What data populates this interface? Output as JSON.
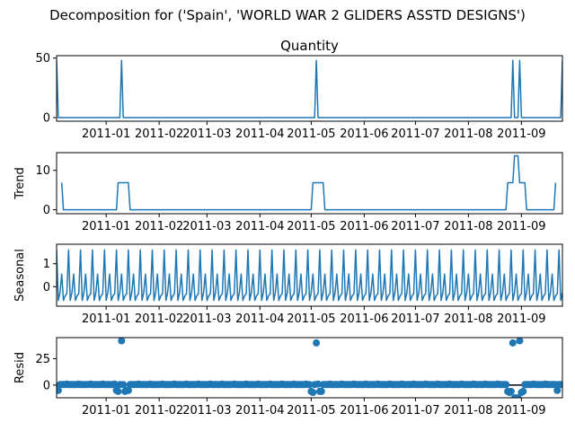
{
  "figure": {
    "suptitle": "Decomposition for ('Spain', 'WORLD WAR 2 GLIDERS ASSTD DESIGNS')",
    "observed_title": "Quantity",
    "x_tick_labels": [
      "2011-01",
      "2011-02",
      "2011-03",
      "2011-04",
      "2011-05",
      "2011-06",
      "2011-07",
      "2011-08",
      "2011-09"
    ],
    "line_color": "#1f77b4",
    "ref_line_color": "#000000"
  },
  "chart_data": [
    {
      "type": "line",
      "name": "observed",
      "title": "Quantity",
      "ylabel": "",
      "x_range": [
        "2010-12-03",
        "2011-09-25"
      ],
      "ylim": [
        -3,
        52
      ],
      "yticks": [
        0,
        50
      ],
      "x": [
        "2010-12-03",
        "2010-12-04",
        "2011-01-09",
        "2011-01-10",
        "2011-01-11",
        "2011-05-03",
        "2011-05-04",
        "2011-05-05",
        "2011-08-26",
        "2011-08-27",
        "2011-08-28",
        "2011-08-30",
        "2011-08-31",
        "2011-09-01",
        "2011-09-24",
        "2011-09-25"
      ],
      "y": [
        48,
        0,
        0,
        48,
        0,
        0,
        48,
        0,
        0,
        48,
        0,
        0,
        48,
        0,
        0,
        48
      ]
    },
    {
      "type": "line",
      "name": "trend",
      "title": "",
      "ylabel": "Trend",
      "x_range": [
        "2010-12-03",
        "2011-09-25"
      ],
      "ylim": [
        -1,
        14.5
      ],
      "yticks": [
        0,
        10
      ],
      "x": [
        "2010-12-06",
        "2010-12-07",
        "2011-01-07",
        "2011-01-08",
        "2011-01-14",
        "2011-01-15",
        "2011-05-01",
        "2011-05-02",
        "2011-05-08",
        "2011-05-09",
        "2011-08-23",
        "2011-08-24",
        "2011-08-27",
        "2011-08-28",
        "2011-08-30",
        "2011-08-31",
        "2011-09-03",
        "2011-09-04",
        "2011-09-20",
        "2011-09-21"
      ],
      "y": [
        6.86,
        0,
        0,
        6.86,
        6.86,
        0,
        0,
        6.86,
        6.86,
        0,
        0,
        6.86,
        6.86,
        13.71,
        13.71,
        6.86,
        6.86,
        0,
        0,
        6.86
      ]
    },
    {
      "type": "line",
      "name": "seasonal",
      "title": "",
      "ylabel": "Seasonal",
      "x_range": [
        "2010-12-03",
        "2011-09-25"
      ],
      "ylim": [
        -0.85,
        1.85
      ],
      "yticks": [
        0,
        1
      ],
      "period_days": 7,
      "weekly_pattern": [
        1.6,
        -0.6,
        -0.25,
        0.55,
        -0.6,
        -0.4,
        -0.3
      ]
    },
    {
      "type": "scatter",
      "name": "resid",
      "title": "",
      "ylabel": "Resid",
      "x_range": [
        "2010-12-03",
        "2011-09-25"
      ],
      "ylim": [
        -12,
        45
      ],
      "yticks": [
        0,
        25
      ],
      "baseline": 0,
      "outliers": [
        {
          "x": "2011-01-10",
          "y": 42
        },
        {
          "x": "2011-05-04",
          "y": 40
        },
        {
          "x": "2011-08-27",
          "y": 40
        },
        {
          "x": "2011-08-31",
          "y": 42
        }
      ],
      "dips": [
        {
          "x": "2010-12-04",
          "y": -5
        },
        {
          "x": "2011-01-07",
          "y": -5
        },
        {
          "x": "2011-01-08",
          "y": -6
        },
        {
          "x": "2011-01-12",
          "y": -6
        },
        {
          "x": "2011-01-13",
          "y": -5
        },
        {
          "x": "2011-01-14",
          "y": -5
        },
        {
          "x": "2011-05-01",
          "y": -6
        },
        {
          "x": "2011-05-02",
          "y": -7
        },
        {
          "x": "2011-05-06",
          "y": -6
        },
        {
          "x": "2011-05-07",
          "y": -6
        },
        {
          "x": "2011-08-24",
          "y": -6
        },
        {
          "x": "2011-08-25",
          "y": -7
        },
        {
          "x": "2011-08-26",
          "y": -6
        },
        {
          "x": "2011-08-28",
          "y": -12
        },
        {
          "x": "2011-08-29",
          "y": -13
        },
        {
          "x": "2011-08-30",
          "y": -12
        },
        {
          "x": "2011-09-01",
          "y": -7
        },
        {
          "x": "2011-09-02",
          "y": -6
        },
        {
          "x": "2011-09-22",
          "y": -5
        }
      ]
    }
  ]
}
